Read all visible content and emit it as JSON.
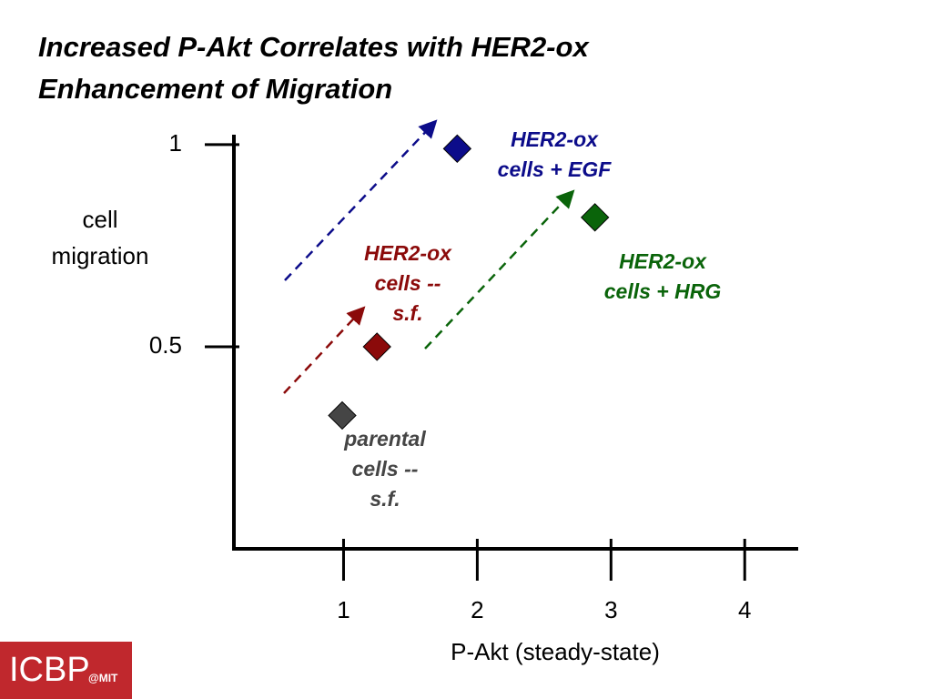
{
  "chart_data": {
    "type": "scatter",
    "title": [
      "Increased P-Akt Correlates with HER2-ox",
      "Enhancement of Migration"
    ],
    "x_label": "P-Akt (steady-state)",
    "y_label": [
      "cell",
      "migration"
    ],
    "xlim": [
      0.18,
      4.4
    ],
    "xticks": [
      1,
      2,
      3,
      4
    ],
    "ylim": [
      0,
      1.02
    ],
    "yticks": [
      0.5,
      1
    ],
    "series": [
      {
        "label": [
          "parental",
          "cells --",
          "s.f."
        ],
        "color": "#454545",
        "x": [
          0.99
        ],
        "values": [
          0.33
        ]
      },
      {
        "label": [
          "HER2-ox",
          "cells --",
          "s.f."
        ],
        "color": "#8b0a0a",
        "x": [
          1.25
        ],
        "values": [
          0.5
        ]
      },
      {
        "label": [
          "HER2-ox",
          "cells + EGF"
        ],
        "color": "#0c0c8a",
        "x": [
          1.85
        ],
        "values": [
          0.99
        ]
      },
      {
        "label": [
          "HER2-ox",
          "cells + HRG"
        ],
        "color": "#0a640a",
        "x": [
          2.88
        ],
        "values": [
          0.82
        ]
      }
    ]
  },
  "footer": {
    "logo": "ICBP",
    "logo_suffix": "@MIT"
  }
}
